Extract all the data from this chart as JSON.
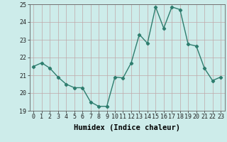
{
  "x": [
    0,
    1,
    2,
    3,
    4,
    5,
    6,
    7,
    8,
    9,
    10,
    11,
    12,
    13,
    14,
    15,
    16,
    17,
    18,
    19,
    20,
    21,
    22,
    23
  ],
  "y": [
    21.5,
    21.7,
    21.4,
    20.9,
    20.5,
    20.3,
    20.3,
    19.5,
    19.25,
    19.25,
    20.9,
    20.85,
    21.7,
    23.3,
    22.8,
    24.85,
    23.65,
    24.85,
    24.7,
    22.75,
    22.65,
    21.4,
    20.7,
    20.9
  ],
  "line_color": "#2e7d6e",
  "marker": "D",
  "marker_size": 2.2,
  "bg_color": "#cdecea",
  "grid_color": "#c0a8a8",
  "xlabel": "Humidex (Indice chaleur)",
  "ylim": [
    19,
    25
  ],
  "xlim": [
    -0.5,
    23.5
  ],
  "yticks": [
    19,
    20,
    21,
    22,
    23,
    24,
    25
  ],
  "xticks": [
    0,
    1,
    2,
    3,
    4,
    5,
    6,
    7,
    8,
    9,
    10,
    11,
    12,
    13,
    14,
    15,
    16,
    17,
    18,
    19,
    20,
    21,
    22,
    23
  ],
  "tick_fontsize": 6,
  "xlabel_fontsize": 7.5,
  "line_width": 1.0
}
